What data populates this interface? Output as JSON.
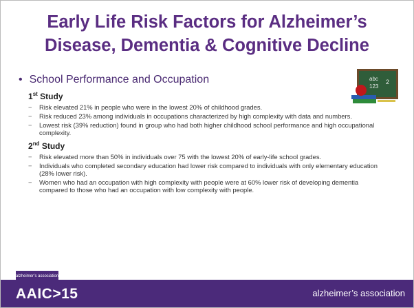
{
  "slide": {
    "title_lines": [
      "Early Life Risk Factors for Alzheimer’s",
      "Disease, Dementia & Cognitive Decline"
    ],
    "bullet": "School Performance and Occupation",
    "sections": [
      {
        "number": "1",
        "suffix": "st",
        "label": "Study",
        "items": [
          "Risk elevated 21% in people who were in the lowest 20% of childhood grades.",
          "Risk reduced 23% among individuals in occupations characterized by high complexity with data and numbers.",
          "Lowest risk (39% reduction) found in group who had both higher childhood school performance and high occupational complexity."
        ]
      },
      {
        "number": "2",
        "suffix": "nd",
        "label": "Study",
        "items": [
          "Risk elevated more than 50% in individuals over 75 with the lowest 20% of early-life school grades.",
          "Individuals who completed secondary education had lower risk compared to individuals with only elementary education (28% lower risk).",
          "Women who had an occupation with high complexity with people were at 60% lower risk of developing dementia compared to those who had an occupation with low complexity with people."
        ]
      }
    ],
    "footer": {
      "small_logo": "alzheimer’s association",
      "conference": "AAIC",
      "year": "15",
      "association_logo": "alzheimer’s association"
    }
  }
}
